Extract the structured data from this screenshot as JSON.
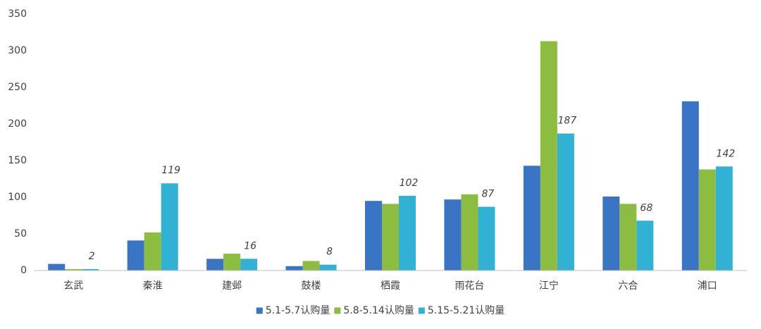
{
  "chart_data": {
    "type": "bar",
    "categories": [
      "玄武",
      "秦淮",
      "建邺",
      "鼓楼",
      "栖霞",
      "雨花台",
      "江宁",
      "六合",
      "浦口"
    ],
    "series": [
      {
        "name": "5.1-5.7认购量",
        "color": "#3a74c4",
        "values": [
          9,
          41,
          16,
          6,
          95,
          97,
          143,
          101,
          231
        ]
      },
      {
        "name": "5.8-5.14认购量",
        "color": "#8cbd40",
        "values": [
          2,
          52,
          23,
          13,
          91,
          104,
          313,
          91,
          138
        ]
      },
      {
        "name": "5.15-5.21认购量",
        "color": "#31b1d4",
        "values": [
          2,
          119,
          16,
          8,
          102,
          87,
          187,
          68,
          142
        ],
        "show_value_labels": true
      }
    ],
    "ylim": [
      0,
      350
    ],
    "yticks": [
      0,
      50,
      100,
      150,
      200,
      250,
      300,
      350
    ],
    "grid": false,
    "legend": "bottom"
  }
}
